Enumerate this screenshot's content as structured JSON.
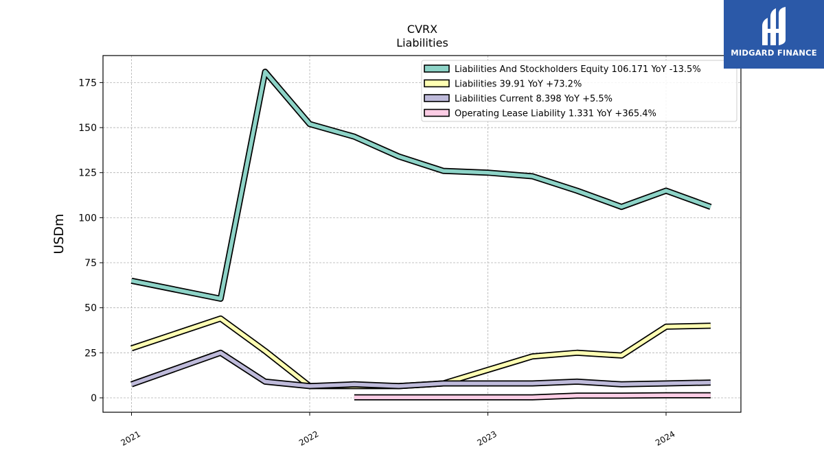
{
  "chart_data": {
    "type": "line",
    "title": "CVRX",
    "subtitle": "Liabilities",
    "ylabel": "USDm",
    "xlabel": "",
    "ylim": [
      -8,
      190
    ],
    "xlim": [
      2020.84,
      2024.42
    ],
    "yticks": [
      0,
      25,
      50,
      75,
      100,
      125,
      150,
      175
    ],
    "xticks": [
      {
        "value": 2021.0,
        "label": "2021"
      },
      {
        "value": 2022.0,
        "label": "2022"
      },
      {
        "value": 2023.0,
        "label": "2023"
      },
      {
        "value": 2024.0,
        "label": "2024"
      }
    ],
    "grid": true,
    "legend_position": "top-right",
    "series": [
      {
        "name": "Liabilities And Stockholders Equity  106.171 YoY -13.5%",
        "color": "#8dd3c7",
        "x": [
          2021.0,
          2021.5,
          2021.75,
          2022.0,
          2022.25,
          2022.5,
          2022.75,
          2023.0,
          2023.25,
          2023.5,
          2023.75,
          2024.0,
          2024.25
        ],
        "y": [
          65,
          55,
          181,
          152,
          145,
          134,
          126,
          125,
          123,
          115,
          106,
          115,
          106
        ]
      },
      {
        "name": "Liabilities  39.91 YoY +73.2%",
        "color": "#ffffb3",
        "x": [
          2021.0,
          2021.5,
          2021.75,
          2022.0,
          2022.25,
          2022.5,
          2022.75,
          2023.0,
          2023.25,
          2023.5,
          2023.75,
          2024.0,
          2024.25
        ],
        "y": [
          27.5,
          44,
          26,
          6.5,
          6.5,
          6.5,
          8,
          15.5,
          23,
          25,
          23.5,
          39.5,
          40
        ]
      },
      {
        "name": "Liabilities Current  8.398 YoY +5.5%",
        "color": "#bebada",
        "x": [
          2021.0,
          2021.5,
          2021.75,
          2022.0,
          2022.25,
          2022.5,
          2022.75,
          2023.0,
          2023.25,
          2023.5,
          2023.75,
          2024.0,
          2024.25
        ],
        "y": [
          7.5,
          25,
          9,
          6.5,
          7.5,
          6.5,
          8,
          8,
          8,
          9,
          7.5,
          8,
          8.5
        ]
      },
      {
        "name": "Operating Lease Liability  1.331 YoY +365.4%",
        "color": "#fccde5",
        "x": [
          2022.25,
          2022.5,
          2022.75,
          2023.0,
          2023.25,
          2023.5,
          2023.75,
          2024.0,
          2024.25
        ],
        "y": [
          0.3,
          0.3,
          0.3,
          0.3,
          0.3,
          1.2,
          1.2,
          1.4,
          1.4
        ]
      }
    ]
  },
  "logo": {
    "text": "MIDGARD FINANCE",
    "icon": "midgard-logo-icon",
    "background": "#2b59a8"
  }
}
